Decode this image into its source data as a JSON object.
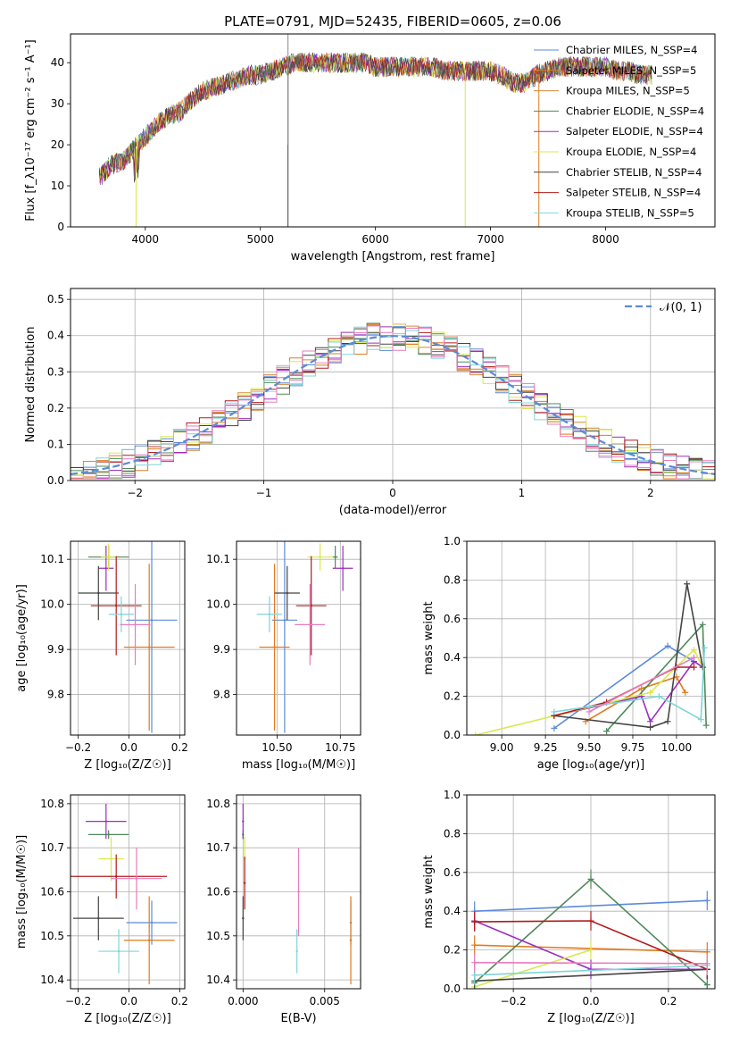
{
  "title": "PLATE=0791, MJD=52435, FIBERID=0605, z=0.06",
  "colors": {
    "chabrier_miles": "#5b8bd9",
    "salpeter_miles": "#e07b1e",
    "kroupa_miles": "#d9893a",
    "chabrier_elodie": "#4f8a5a",
    "salpeter_elodie": "#9b2fc0",
    "kroupa_elodie": "#d9e84f",
    "chabrier_stelib": "#444444",
    "salpeter_stelib": "#b01b1b",
    "kroupa_stelib": "#7fd4d9",
    "pink": "#e87bbd",
    "normal": "#5b8bd9"
  },
  "chart_data": [
    {
      "id": "spectrum",
      "type": "line",
      "xlabel": "wavelength [Angstrom, rest frame]",
      "ylabel": "Flux [f_λ10⁻¹⁷ erg cm⁻² s⁻¹ A⁻¹]",
      "xlim": [
        3350,
        8950
      ],
      "ylim": [
        0,
        47
      ],
      "xticks": [
        4000,
        5000,
        6000,
        7000,
        8000
      ],
      "yticks": [
        0,
        10,
        20,
        30,
        40
      ],
      "legend_position": "top-right",
      "legend": [
        {
          "label": "Chabrier MILES, N_SSP=4",
          "color": "#5b8bd9"
        },
        {
          "label": "Salpeter MILES, N_SSP=5",
          "color": "#e07b1e"
        },
        {
          "label": "Kroupa MILES, N_SSP=5",
          "color": "#d9893a"
        },
        {
          "label": "Chabrier ELODIE, N_SSP=4",
          "color": "#4f8a5a"
        },
        {
          "label": "Salpeter ELODIE, N_SSP=4",
          "color": "#9b2fc0"
        },
        {
          "label": "Kroupa ELODIE, N_SSP=4",
          "color": "#d9e84f"
        },
        {
          "label": "Chabrier STELIB, N_SSP=4",
          "color": "#444444"
        },
        {
          "label": "Salpeter STELIB, N_SSP=4",
          "color": "#b01b1b"
        },
        {
          "label": "Kroupa STELIB, N_SSP=5",
          "color": "#7fd4d9"
        }
      ],
      "continuum": [
        [
          3600,
          12
        ],
        [
          3700,
          15
        ],
        [
          3800,
          16
        ],
        [
          3900,
          19
        ],
        [
          4000,
          22
        ],
        [
          4100,
          25
        ],
        [
          4200,
          27
        ],
        [
          4300,
          28
        ],
        [
          4400,
          31
        ],
        [
          4500,
          33
        ],
        [
          4600,
          34
        ],
        [
          4700,
          35
        ],
        [
          4800,
          36
        ],
        [
          4900,
          37
        ],
        [
          5000,
          37
        ],
        [
          5100,
          38
        ],
        [
          5200,
          39
        ],
        [
          5300,
          40
        ],
        [
          5400,
          40
        ],
        [
          5500,
          40
        ],
        [
          5600,
          40
        ],
        [
          5700,
          40
        ],
        [
          5800,
          40
        ],
        [
          5900,
          40
        ],
        [
          6000,
          39
        ],
        [
          6100,
          39
        ],
        [
          6200,
          39
        ],
        [
          6300,
          39
        ],
        [
          6400,
          39
        ],
        [
          6500,
          39
        ],
        [
          6600,
          38
        ],
        [
          6700,
          38
        ],
        [
          6800,
          38
        ],
        [
          6900,
          38
        ],
        [
          7000,
          38
        ],
        [
          7100,
          37
        ],
        [
          7200,
          35
        ],
        [
          7300,
          35
        ],
        [
          7400,
          37
        ],
        [
          7500,
          38
        ],
        [
          7600,
          39
        ],
        [
          7700,
          39
        ],
        [
          7800,
          39
        ],
        [
          7900,
          39
        ],
        [
          8000,
          39
        ],
        [
          8100,
          38
        ],
        [
          8200,
          38
        ],
        [
          8300,
          37
        ],
        [
          8400,
          37
        ]
      ]
    },
    {
      "id": "residuals",
      "type": "histogram",
      "xlabel": "(data-model)/error",
      "ylabel": "Normed distribution",
      "xlim": [
        -2.5,
        2.5
      ],
      "ylim": [
        0,
        0.53
      ],
      "xticks": [
        -2,
        -1,
        0,
        1,
        2
      ],
      "yticks": [
        0.0,
        0.1,
        0.2,
        0.3,
        0.4,
        0.5
      ],
      "legend": [
        {
          "label": "𝒩(0, 1)",
          "color": "#5b8bd9"
        }
      ],
      "legend_position": "top-right",
      "bin_width": 0.1
    },
    {
      "id": "age_vs_Z",
      "type": "scatter",
      "xlabel": "Z [log₁₀(Z/Z☉)]",
      "ylabel": "age  [log₁₀(age/yr)]",
      "xlim": [
        -0.23,
        0.22
      ],
      "ylim": [
        9.71,
        10.14
      ],
      "xticks": [
        -0.2,
        0.0,
        0.2
      ],
      "yticks": [
        9.8,
        9.9,
        10.0,
        10.1
      ],
      "points": [
        {
          "x": 0.09,
          "y": 9.965,
          "xerr": 0.1,
          "yerr": 0.25,
          "color": "#5b8bd9"
        },
        {
          "x": 0.08,
          "y": 9.905,
          "xerr": 0.1,
          "yerr": 0.185,
          "color": "#e07b1e"
        },
        {
          "x": -0.08,
          "y": 10.105,
          "xerr": 0.08,
          "yerr": 0.025,
          "color": "#4f8a5a"
        },
        {
          "x": -0.09,
          "y": 10.08,
          "xerr": 0.03,
          "yerr": 0.05,
          "color": "#9b2fc0"
        },
        {
          "x": -0.08,
          "y": 10.105,
          "xerr": 0.03,
          "yerr": 0.03,
          "color": "#d9e84f"
        },
        {
          "x": -0.12,
          "y": 10.025,
          "xerr": 0.08,
          "yerr": 0.06,
          "color": "#444444"
        },
        {
          "x": -0.05,
          "y": 9.997,
          "xerr": 0.1,
          "yerr": 0.11,
          "color": "#b01b1b"
        },
        {
          "x": -0.03,
          "y": 9.978,
          "xerr": 0.05,
          "yerr": 0.04,
          "color": "#7fd4d9"
        },
        {
          "x": 0.025,
          "y": 9.955,
          "xerr": 0.06,
          "yerr": 0.09,
          "color": "#e87bbd"
        }
      ]
    },
    {
      "id": "age_vs_mass",
      "type": "scatter",
      "xlabel": "mass [log₁₀(M/M☉)]",
      "ylabel": "",
      "xlim": [
        10.34,
        10.83
      ],
      "ylim": [
        9.71,
        10.14
      ],
      "xticks": [
        10.5,
        10.75
      ],
      "yticks": [
        9.8,
        9.9,
        10.0,
        10.1
      ],
      "points": [
        {
          "x": 10.53,
          "y": 9.965,
          "xerr": 0.05,
          "yerr": 0.25,
          "color": "#5b8bd9"
        },
        {
          "x": 10.49,
          "y": 9.905,
          "xerr": 0.06,
          "yerr": 0.185,
          "color": "#e07b1e"
        },
        {
          "x": 10.73,
          "y": 10.105,
          "xerr": 0.01,
          "yerr": 0.025,
          "color": "#4f8a5a"
        },
        {
          "x": 10.76,
          "y": 10.08,
          "xerr": 0.04,
          "yerr": 0.05,
          "color": "#9b2fc0"
        },
        {
          "x": 10.67,
          "y": 10.105,
          "xerr": 0.05,
          "yerr": 0.03,
          "color": "#d9e84f"
        },
        {
          "x": 10.54,
          "y": 10.025,
          "xerr": 0.05,
          "yerr": 0.06,
          "color": "#444444"
        },
        {
          "x": 10.635,
          "y": 9.997,
          "xerr": 0.06,
          "yerr": 0.11,
          "color": "#b01b1b"
        },
        {
          "x": 10.47,
          "y": 9.978,
          "xerr": 0.05,
          "yerr": 0.04,
          "color": "#7fd4d9"
        },
        {
          "x": 10.63,
          "y": 9.955,
          "xerr": 0.06,
          "yerr": 0.09,
          "color": "#e87bbd"
        }
      ]
    },
    {
      "id": "mass_weight_vs_age",
      "type": "line",
      "xlabel": "age  [log₁₀(age/yr)]",
      "ylabel": "mass weight",
      "xlim": [
        8.8,
        10.22
      ],
      "ylim": [
        0,
        1
      ],
      "xticks": [
        9.0,
        9.25,
        9.5,
        9.75,
        10.0
      ],
      "yticks": [
        0.0,
        0.2,
        0.4,
        0.6,
        0.8,
        1.0
      ],
      "series": [
        {
          "color": "#5b8bd9",
          "x": [
            9.3,
            9.95,
            10.1,
            10.15
          ],
          "y": [
            0.035,
            0.46,
            0.38,
            0.35
          ]
        },
        {
          "color": "#e07b1e",
          "x": [
            9.48,
            9.8,
            10.0,
            10.05
          ],
          "y": [
            0.07,
            0.24,
            0.3,
            0.22
          ]
        },
        {
          "color": "#4f8a5a",
          "x": [
            9.6,
            10.15,
            10.17
          ],
          "y": [
            0.02,
            0.57,
            0.05
          ]
        },
        {
          "color": "#9b2fc0",
          "x": [
            9.3,
            9.8,
            9.85,
            10.1,
            10.15
          ],
          "y": [
            0.1,
            0.2,
            0.07,
            0.38,
            0.35
          ]
        },
        {
          "color": "#d9e84f",
          "x": [
            8.85,
            9.85,
            10.1,
            10.15
          ],
          "y": [
            0.0,
            0.22,
            0.44,
            0.35
          ]
        },
        {
          "color": "#444444",
          "x": [
            9.3,
            9.85,
            9.95,
            10.06,
            10.15
          ],
          "y": [
            0.1,
            0.04,
            0.07,
            0.78,
            0.35
          ]
        },
        {
          "color": "#b01b1b",
          "x": [
            9.3,
            9.6,
            10.0,
            10.1
          ],
          "y": [
            0.1,
            0.17,
            0.35,
            0.35
          ]
        },
        {
          "color": "#7fd4d9",
          "x": [
            9.3,
            9.9,
            10.14,
            10.16
          ],
          "y": [
            0.12,
            0.2,
            0.08,
            0.45
          ]
        },
        {
          "color": "#e87bbd",
          "x": [
            9.5,
            10.1
          ],
          "y": [
            0.12,
            0.4
          ]
        }
      ]
    },
    {
      "id": "mass_vs_Z",
      "type": "scatter",
      "xlabel": "Z [log₁₀(Z/Z☉)]",
      "ylabel": "mass [log₁₀(M/M☉)]",
      "xlim": [
        -0.23,
        0.22
      ],
      "ylim": [
        10.38,
        10.82
      ],
      "xticks": [
        -0.2,
        0.0,
        0.2
      ],
      "yticks": [
        10.4,
        10.5,
        10.6,
        10.7,
        10.8
      ],
      "points": [
        {
          "x": 0.09,
          "y": 10.53,
          "xerr": 0.1,
          "yerr": 0.05,
          "color": "#5b8bd9"
        },
        {
          "x": 0.08,
          "y": 10.49,
          "xerr": 0.1,
          "yerr": 0.1,
          "color": "#e07b1e"
        },
        {
          "x": -0.08,
          "y": 10.73,
          "xerr": 0.08,
          "yerr": 0.01,
          "color": "#4f8a5a"
        },
        {
          "x": -0.09,
          "y": 10.76,
          "xerr": 0.08,
          "yerr": 0.04,
          "color": "#9b2fc0"
        },
        {
          "x": -0.07,
          "y": 10.675,
          "xerr": 0.05,
          "yerr": 0.05,
          "color": "#d9e84f"
        },
        {
          "x": -0.12,
          "y": 10.54,
          "xerr": 0.1,
          "yerr": 0.05,
          "color": "#444444"
        },
        {
          "x": -0.05,
          "y": 10.635,
          "xerr": 0.2,
          "yerr": 0.05,
          "color": "#b01b1b"
        },
        {
          "x": -0.04,
          "y": 10.465,
          "xerr": 0.08,
          "yerr": 0.05,
          "color": "#7fd4d9"
        },
        {
          "x": 0.03,
          "y": 10.63,
          "xerr": 0.1,
          "yerr": 0.07,
          "color": "#e87bbd"
        }
      ]
    },
    {
      "id": "mass_vs_ebv",
      "type": "scatter",
      "xlabel": "E(B-V)",
      "ylabel": "",
      "xlim": [
        -0.0004,
        0.0072
      ],
      "ylim": [
        10.38,
        10.82
      ],
      "xticks": [
        0.0,
        0.005
      ],
      "xtick_labels": [
        "0.000",
        "0.005"
      ],
      "yticks": [
        10.4,
        10.5,
        10.6,
        10.7,
        10.8
      ],
      "points": [
        {
          "x": 0.0066,
          "y": 10.53,
          "yerr": 0.05,
          "color": "#5b8bd9"
        },
        {
          "x": 0.0066,
          "y": 10.49,
          "yerr": 0.1,
          "color": "#e07b1e"
        },
        {
          "x": 0.0,
          "y": 10.73,
          "yerr": 0.01,
          "color": "#4f8a5a"
        },
        {
          "x": 0.0,
          "y": 10.76,
          "yerr": 0.04,
          "color": "#9b2fc0"
        },
        {
          "x": 0.0001,
          "y": 10.675,
          "yerr": 0.05,
          "color": "#d9e84f"
        },
        {
          "x": 0.0,
          "y": 10.54,
          "yerr": 0.05,
          "color": "#444444"
        },
        {
          "x": 0.0001,
          "y": 10.62,
          "yerr": 0.06,
          "color": "#b01b1b"
        },
        {
          "x": 0.0033,
          "y": 10.465,
          "yerr": 0.05,
          "color": "#7fd4d9"
        },
        {
          "x": 0.0034,
          "y": 10.6,
          "yerr": 0.1,
          "color": "#e87bbd"
        }
      ]
    },
    {
      "id": "mass_weight_vs_Z",
      "type": "line",
      "xlabel": "Z [log₁₀(Z/Z☉)]",
      "ylabel": "mass weight",
      "xlim": [
        -0.32,
        0.32
      ],
      "ylim": [
        0,
        1
      ],
      "xticks": [
        -0.2,
        0.0,
        0.2
      ],
      "yticks": [
        0.0,
        0.2,
        0.4,
        0.6,
        0.8,
        1.0
      ],
      "series": [
        {
          "color": "#5b8bd9",
          "x": [
            -0.3,
            0.3
          ],
          "y": [
            0.4,
            0.455
          ]
        },
        {
          "color": "#e07b1e",
          "x": [
            -0.3,
            0.3
          ],
          "y": [
            0.225,
            0.19
          ]
        },
        {
          "color": "#4f8a5a",
          "x": [
            -0.3,
            0.0,
            0.3
          ],
          "y": [
            0.03,
            0.565,
            0.02
          ]
        },
        {
          "color": "#9b2fc0",
          "x": [
            -0.3,
            0.0,
            0.3
          ],
          "y": [
            0.35,
            0.1,
            0.1
          ]
        },
        {
          "color": "#d9e84f",
          "x": [
            -0.3,
            0.0
          ],
          "y": [
            0.01,
            0.2
          ]
        },
        {
          "color": "#444444",
          "x": [
            -0.3,
            0.3
          ],
          "y": [
            0.04,
            0.1
          ]
        },
        {
          "color": "#b01b1b",
          "x": [
            -0.3,
            0.0,
            0.3
          ],
          "y": [
            0.345,
            0.35,
            0.1
          ]
        },
        {
          "color": "#7fd4d9",
          "x": [
            -0.3,
            0.3
          ],
          "y": [
            0.07,
            0.12
          ]
        },
        {
          "color": "#e87bbd",
          "x": [
            -0.3,
            0.3
          ],
          "y": [
            0.135,
            0.13
          ]
        }
      ]
    }
  ]
}
